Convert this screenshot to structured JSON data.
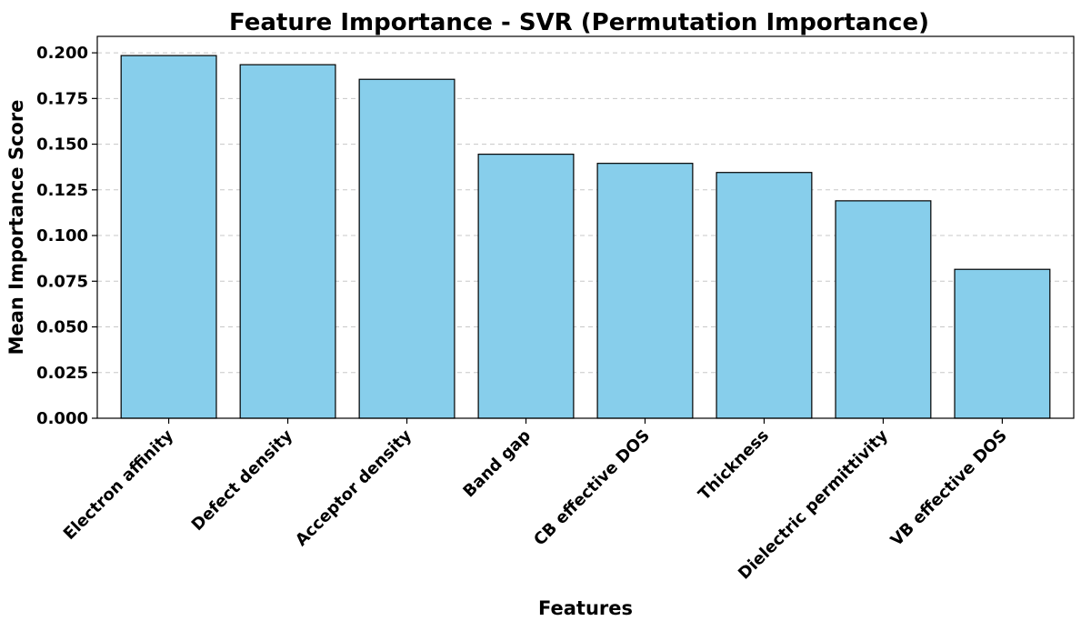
{
  "chart_data": {
    "type": "bar",
    "title": "Feature Importance - SVR (Permutation Importance)",
    "xlabel": "Features",
    "ylabel": "Mean Importance Score",
    "categories": [
      "Electron affinity",
      "Defect density",
      "Acceptor density",
      "Band gap",
      "CB effective DOS",
      "Thickness",
      "Dielectric permittivity",
      "VB effective DOS"
    ],
    "values": [
      0.1985,
      0.1935,
      0.1855,
      0.1445,
      0.1395,
      0.1345,
      0.119,
      0.0815
    ],
    "ylim": [
      0,
      0.209
    ],
    "yticks": [
      0,
      0.025,
      0.05,
      0.075,
      0.1,
      0.125,
      0.15,
      0.175,
      0.2
    ],
    "ytick_labels": [
      "0.000",
      "0.025",
      "0.050",
      "0.075",
      "0.100",
      "0.125",
      "0.150",
      "0.175",
      "0.200"
    ],
    "grid": "y-dashed",
    "legend": "none",
    "colors": {
      "bar_fill": "#87CEEB",
      "bar_edge": "#000000",
      "grid": "#c8c8c8"
    }
  }
}
